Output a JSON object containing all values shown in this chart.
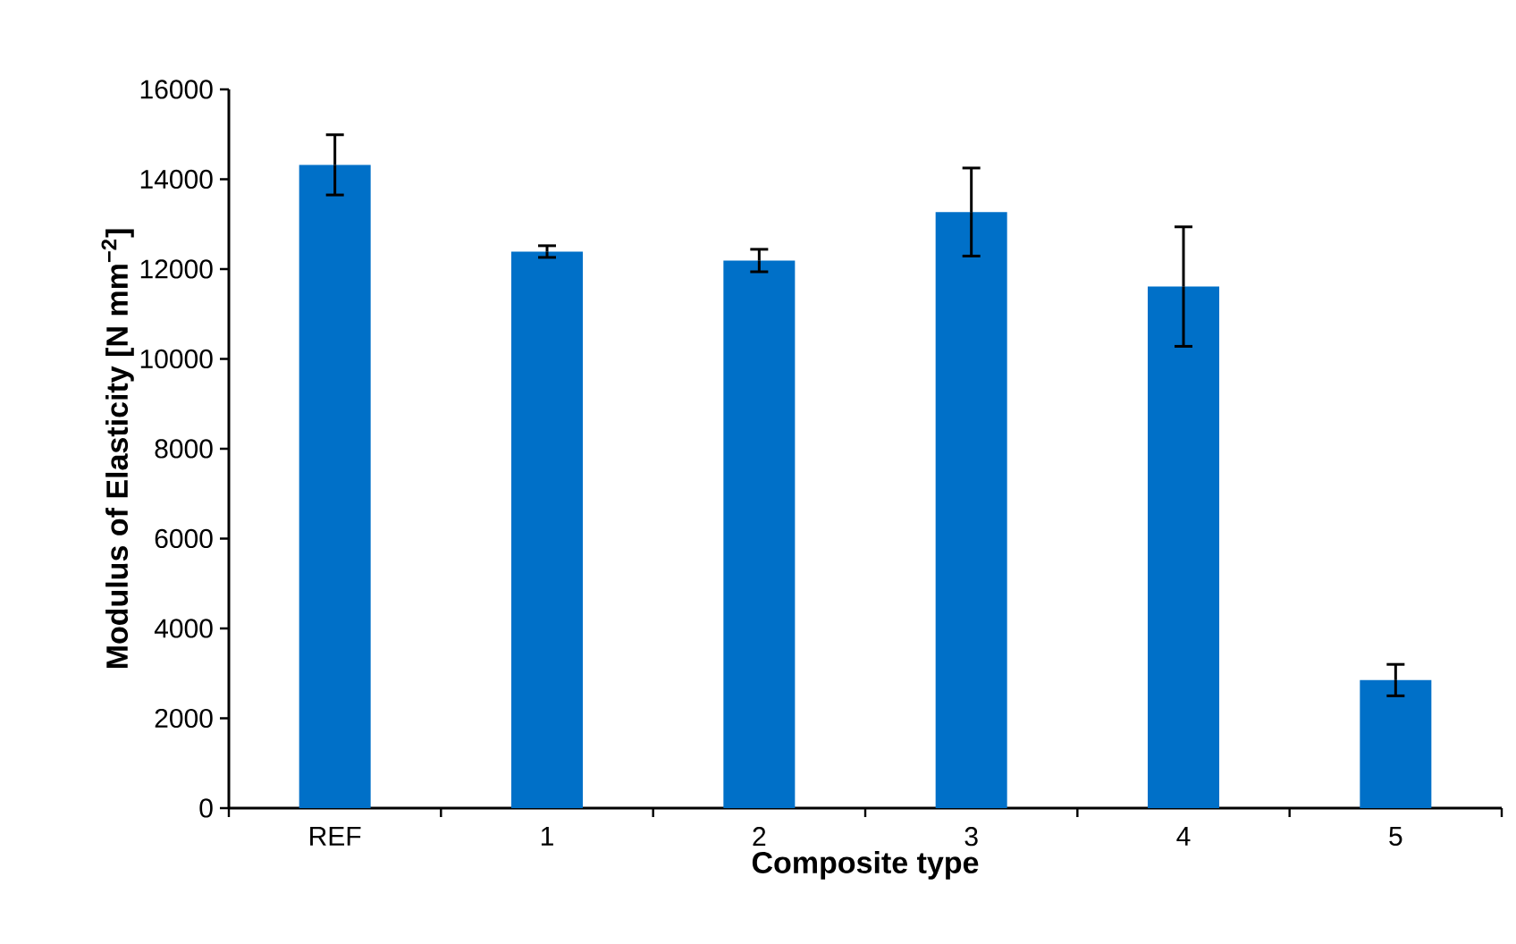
{
  "chart_data": {
    "type": "bar",
    "xlabel": "Composite type",
    "ylabel": "Modulus of Elasticity [N mm$^{−2}$]",
    "categories": [
      "REF",
      "1",
      "2",
      "3",
      "4",
      "5"
    ],
    "values": [
      14320,
      12390,
      12190,
      13270,
      11610,
      2850
    ],
    "errors": [
      670,
      130,
      250,
      980,
      1330,
      350
    ],
    "color": "#0070c8",
    "ylim": [
      0,
      16000
    ],
    "yticks": [
      0,
      2000,
      4000,
      6000,
      8000,
      10000,
      12000,
      14000,
      16000
    ],
    "grid": false
  }
}
